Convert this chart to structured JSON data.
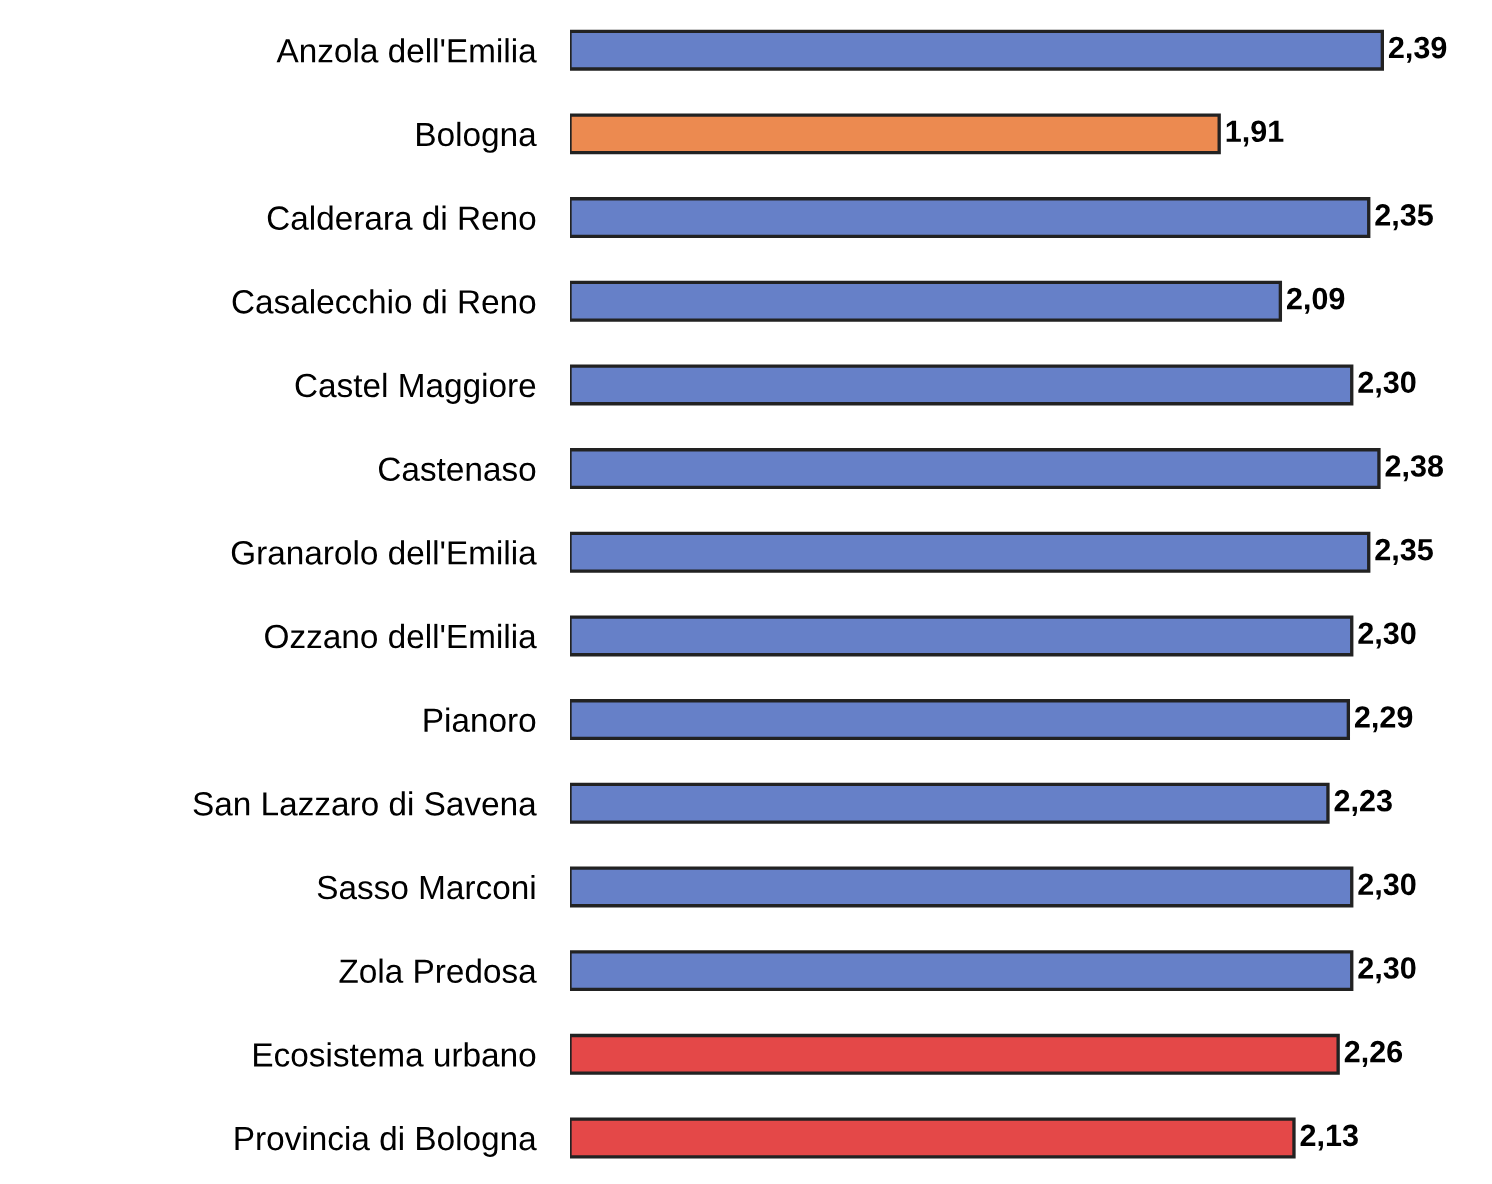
{
  "chart_data": {
    "type": "bar",
    "orientation": "horizontal",
    "categories": [
      "Anzola dell'Emilia",
      "Bologna",
      "Calderara di Reno",
      "Casalecchio di Reno",
      "Castel Maggiore",
      "Castenaso",
      "Granarolo dell'Emilia",
      "Ozzano dell'Emilia",
      "Pianoro",
      "San Lazzaro di Savena",
      "Sasso Marconi",
      "Zola Predosa",
      "Ecosistema urbano",
      "Provincia di Bologna"
    ],
    "values": [
      2.39,
      1.91,
      2.35,
      2.09,
      2.3,
      2.38,
      2.35,
      2.3,
      2.29,
      2.23,
      2.3,
      2.3,
      2.26,
      2.13
    ],
    "value_labels": [
      "2,39",
      "1,91",
      "2,35",
      "2,09",
      "2,30",
      "2,38",
      "2,35",
      "2,30",
      "2,29",
      "2,23",
      "2,30",
      "2,30",
      "2,26",
      "2,13"
    ],
    "colors": [
      "#6680c8",
      "#ec8a50",
      "#6680c8",
      "#6680c8",
      "#6680c8",
      "#6680c8",
      "#6680c8",
      "#6680c8",
      "#6680c8",
      "#6680c8",
      "#6680c8",
      "#6680c8",
      "#e44848",
      "#e44848"
    ],
    "grid": false,
    "legend": false
  }
}
